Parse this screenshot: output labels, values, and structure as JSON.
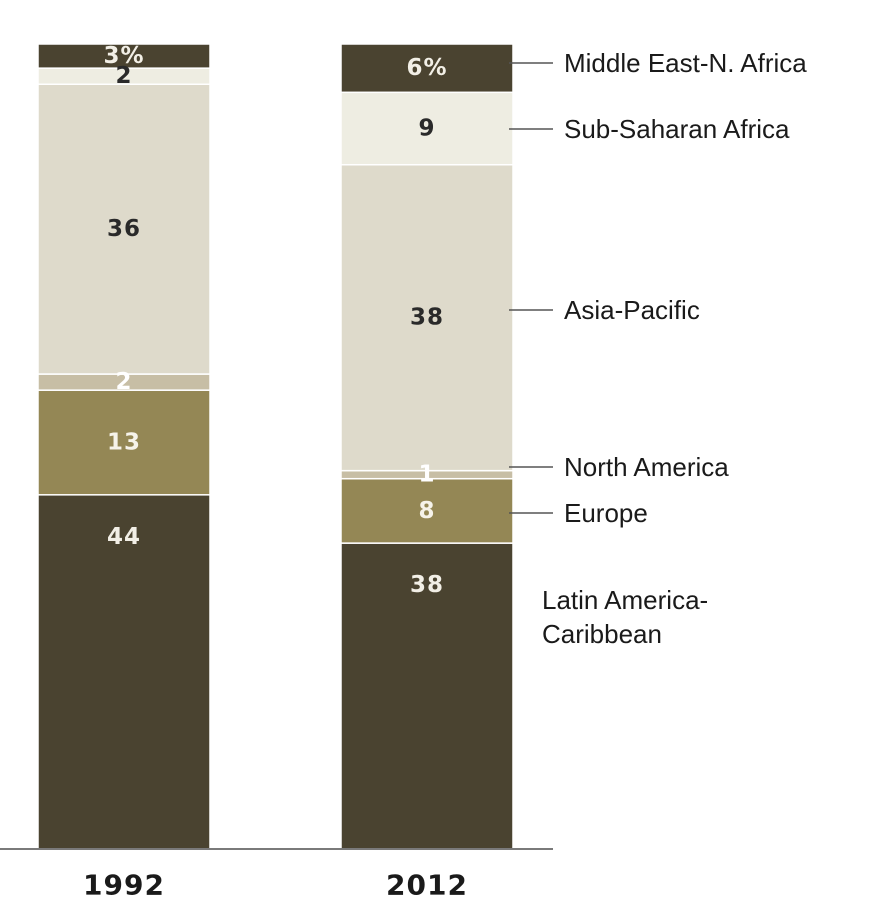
{
  "chart_data": {
    "type": "stacked-bar",
    "categories": [
      "1992",
      "2012"
    ],
    "series": [
      {
        "name": "Latin America-Caribbean",
        "legend_lines": [
          "Latin America-",
          "Caribbean"
        ],
        "values": [
          44,
          38
        ],
        "labels": [
          "44",
          "38"
        ],
        "color": "#4a4330",
        "text_color": "#f2efe6"
      },
      {
        "name": "Europe",
        "legend_lines": [
          "Europe"
        ],
        "values": [
          13,
          8
        ],
        "labels": [
          "13",
          "8"
        ],
        "color": "#948755",
        "text_color": "#f6f3ea"
      },
      {
        "name": "North America",
        "legend_lines": [
          "North America"
        ],
        "values": [
          2,
          1
        ],
        "labels": [
          "2",
          "1"
        ],
        "color": "#c7bea5",
        "text_color": "#ffffff"
      },
      {
        "name": "Asia-Pacific",
        "legend_lines": [
          "Asia-Pacific"
        ],
        "values": [
          36,
          38
        ],
        "labels": [
          "36",
          "38"
        ],
        "color": "#dedacb",
        "text_color": "#2a2a2a"
      },
      {
        "name": "Sub-Saharan Africa",
        "legend_lines": [
          "Sub-Saharan Africa"
        ],
        "values": [
          2,
          9
        ],
        "labels": [
          "2",
          "9"
        ],
        "color": "#eeede2",
        "text_color": "#2a2a2a"
      },
      {
        "name": "Middle East-N. Africa",
        "legend_lines": [
          "Middle East-N. Africa"
        ],
        "values": [
          3,
          6
        ],
        "labels": [
          "3%",
          "6%"
        ],
        "color": "#4a4330",
        "text_color": "#f2efe6"
      }
    ],
    "unit": "%",
    "ylim": [
      0,
      100
    ],
    "legend_position": "right",
    "title": "",
    "xlabel": "",
    "ylabel": ""
  }
}
